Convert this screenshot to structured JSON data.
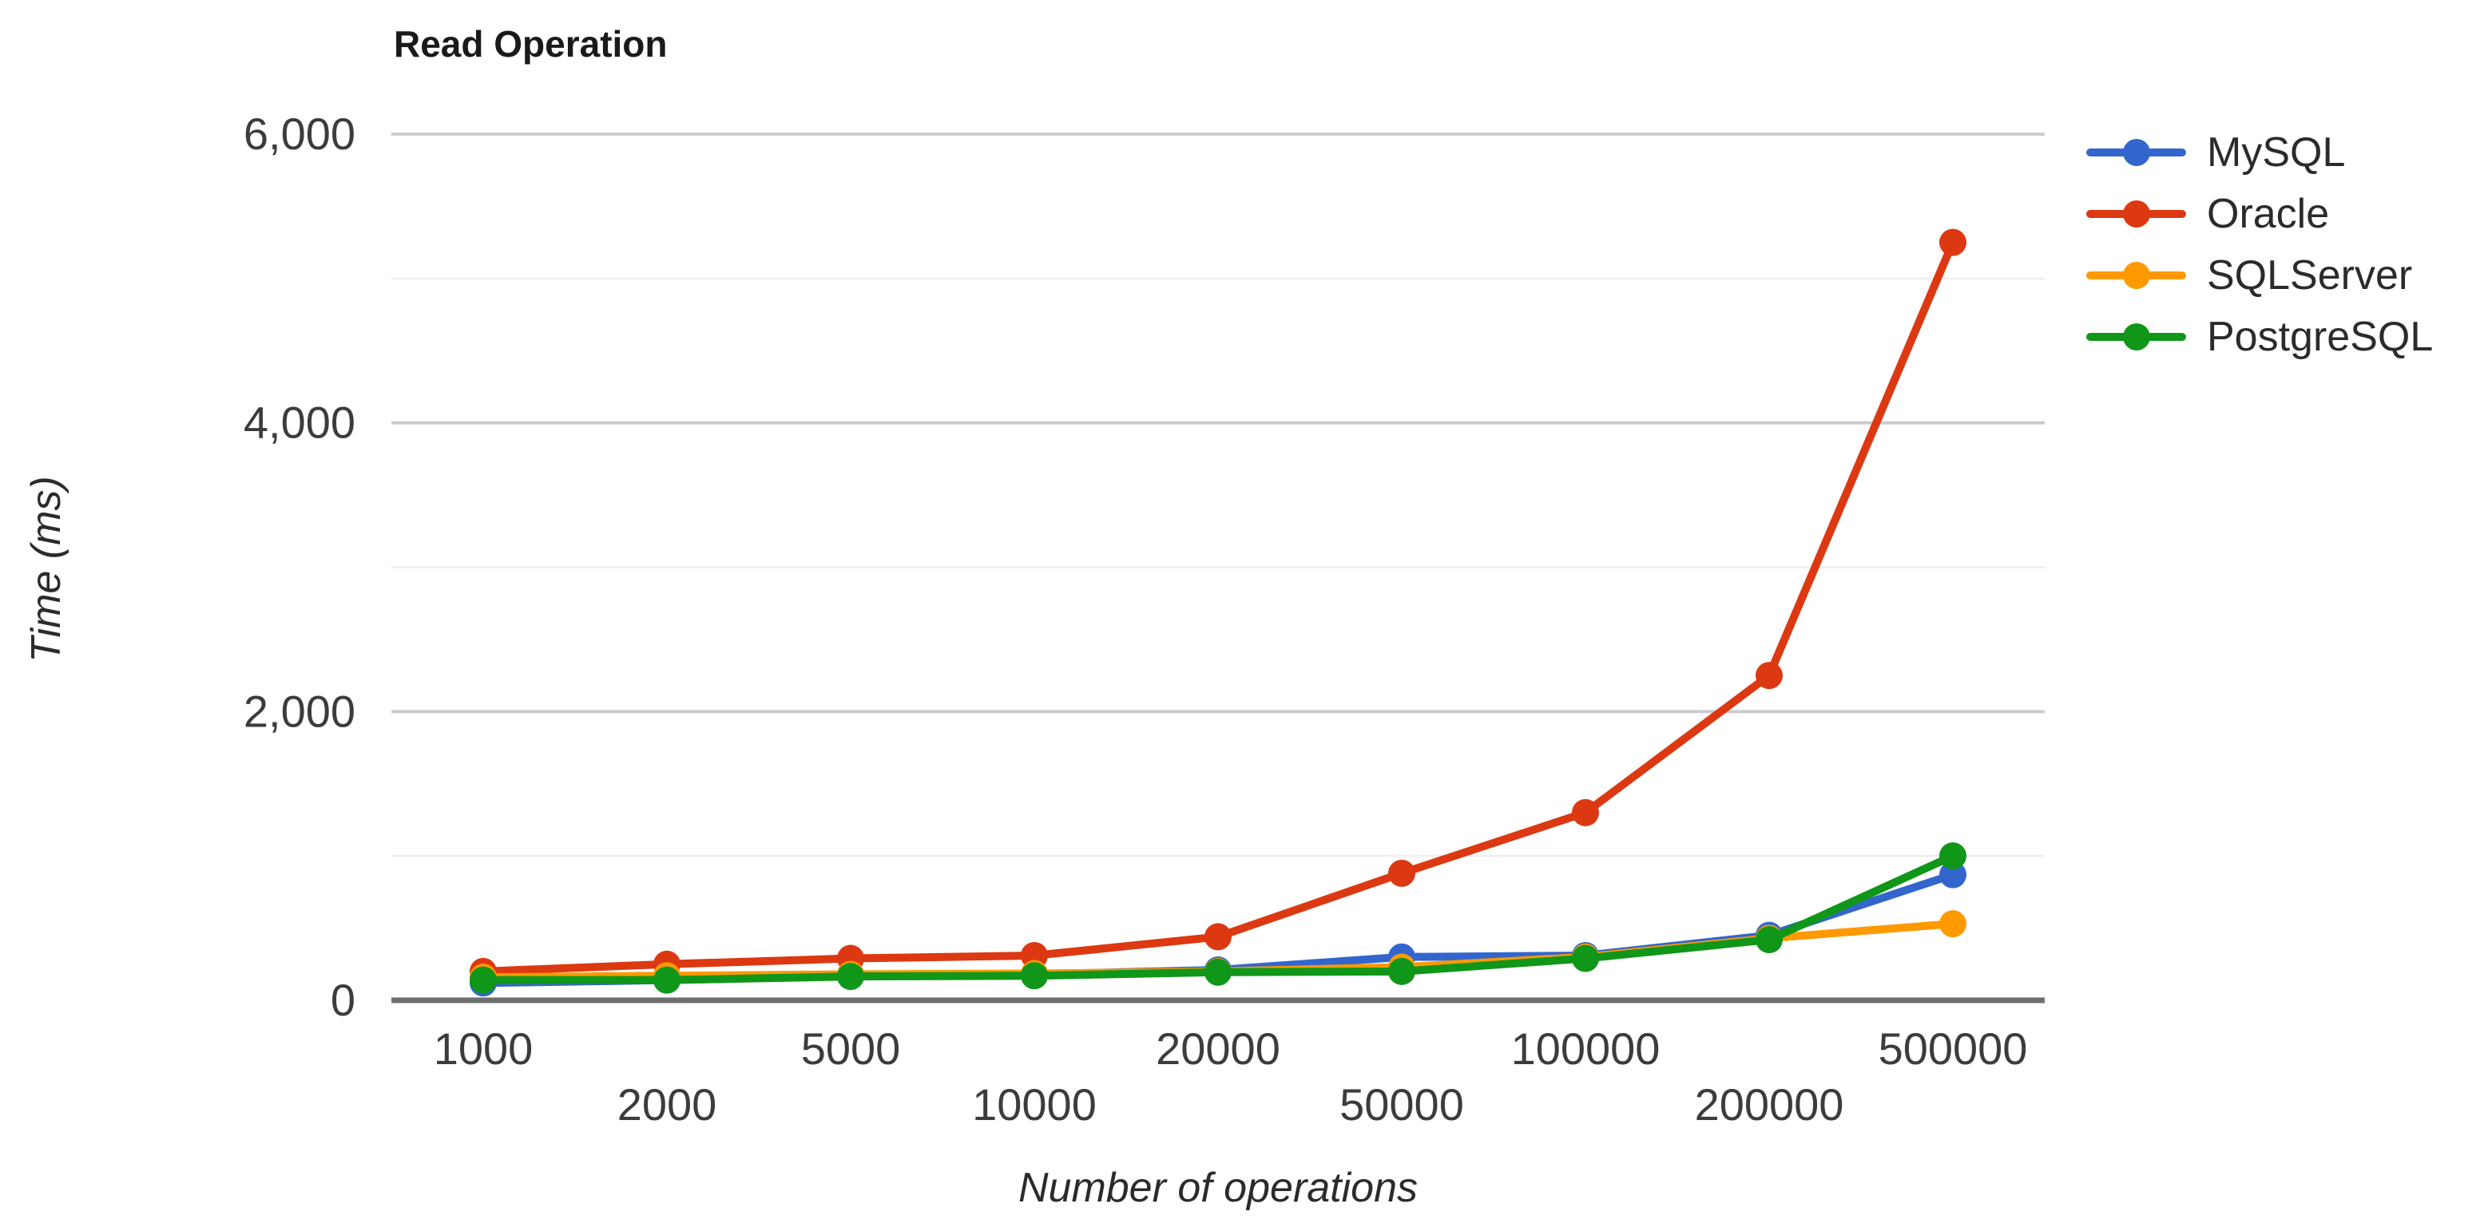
{
  "chart_data": {
    "type": "line",
    "title": "Read Operation",
    "xlabel": "Number of operations",
    "ylabel": "Time (ms)",
    "categories": [
      "1000",
      "2000",
      "5000",
      "10000",
      "20000",
      "50000",
      "100000",
      "200000",
      "500000"
    ],
    "series": [
      {
        "name": "MySQL",
        "color": "#3366CC",
        "values": [
          120,
          140,
          170,
          180,
          210,
          300,
          310,
          450,
          870
        ]
      },
      {
        "name": "Oracle",
        "color": "#DC3912",
        "values": [
          200,
          250,
          290,
          310,
          440,
          880,
          1300,
          2250,
          5250
        ]
      },
      {
        "name": "SQLServer",
        "color": "#FF9900",
        "values": [
          160,
          170,
          180,
          185,
          200,
          230,
          300,
          430,
          530
        ]
      },
      {
        "name": "PostgreSQL",
        "color": "#109618",
        "values": [
          140,
          140,
          165,
          170,
          195,
          200,
          290,
          420,
          1000
        ]
      }
    ],
    "ylim": [
      0,
      6000
    ],
    "yticks": [
      {
        "value": 0,
        "label": "0"
      },
      {
        "value": 2000,
        "label": "2,000"
      },
      {
        "value": 4000,
        "label": "4,000"
      },
      {
        "value": 6000,
        "label": "6,000"
      }
    ],
    "minor_yticks": [
      1000,
      3000,
      5000
    ],
    "legend_position": "right",
    "grid": true,
    "marker": "circle",
    "colors": {
      "major_gridline": "#cccccc",
      "minor_gridline": "#f0f0f0",
      "axis_line": "#6e6e6e",
      "tick_text": "#3c3c3c",
      "title_text": "#1a1a1a",
      "axis_title_text": "#2b2b2b",
      "legend_text": "#2b2b2b",
      "background": "#ffffff"
    }
  }
}
